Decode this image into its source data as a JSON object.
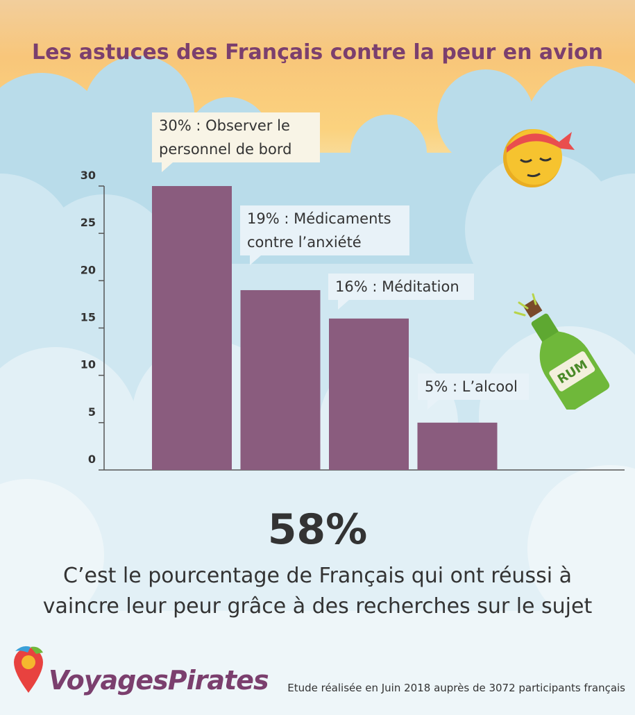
{
  "title": "Les astuces des Français contre la peur en avion",
  "chart_data": {
    "type": "bar",
    "categories": [
      "Observer le personnel de bord",
      "Médicaments contre l’anxiété",
      "Méditation",
      "L’alcool"
    ],
    "values": [
      30,
      19,
      16,
      5
    ],
    "ylim": [
      0,
      30
    ],
    "yticks": [
      0,
      5,
      10,
      15,
      20,
      25,
      30
    ],
    "bar_color": "#8a5c7e",
    "grid": false,
    "annotations": [
      {
        "line1": "30% : Observer le",
        "line2": "personnel de bord"
      },
      {
        "line1": "19% : Médicaments",
        "line2": "contre l’anxiété"
      },
      {
        "line1": "16% : Méditation",
        "line2": ""
      },
      {
        "line1": "5% : L’alcool",
        "line2": ""
      }
    ]
  },
  "highlight": {
    "value": "58%",
    "line1": "C’est le pourcentage de Français qui ont réussi à",
    "line2": "vaincre leur peur grâce à des recherches sur le sujet"
  },
  "brand": "VoyagesPirates",
  "source": "Etude réalisée en Juin 2018 auprès de 3072 participants français",
  "bottle_label": "RUM",
  "icons": [
    "sleeping-face-bandana-icon",
    "rum-bottle-icon",
    "parrot-pin-logo-icon"
  ],
  "colors": {
    "title": "#7b3f6e",
    "bar": "#8a5c7e",
    "bottle": "#6fb83a",
    "face": "#f6c32f",
    "bandana": "#e94e4e"
  }
}
